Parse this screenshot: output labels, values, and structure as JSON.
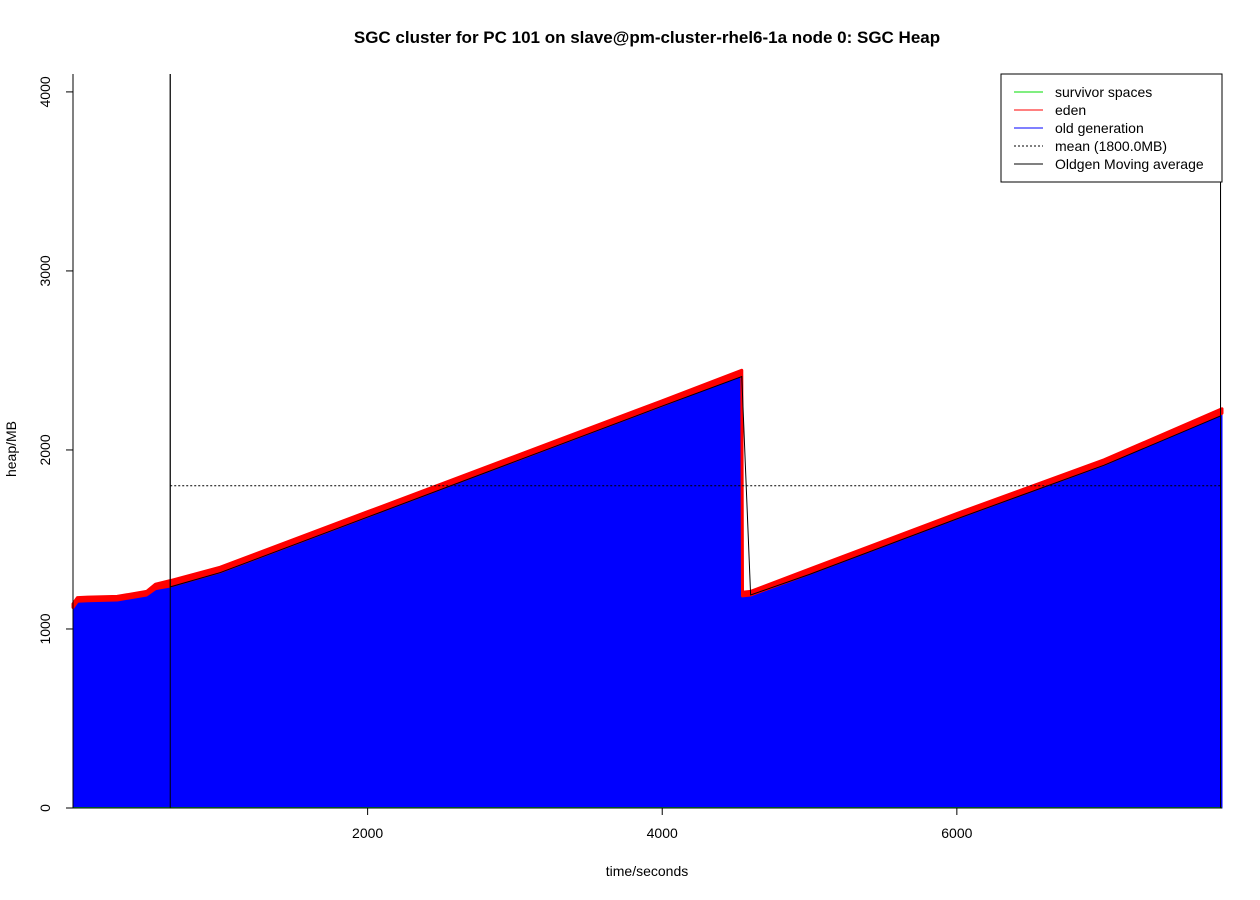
{
  "chart_data": {
    "type": "area",
    "title": "SGC cluster for PC 101 on slave@pm-cluster-rhel6-1a node 0: SGC Heap",
    "xlabel": "time/seconds",
    "ylabel": "heap/MB",
    "xlim": [
      0,
      7800
    ],
    "ylim": [
      0,
      4100
    ],
    "x_ticks": [
      2000,
      4000,
      6000
    ],
    "y_ticks": [
      0,
      1000,
      2000,
      3000,
      4000
    ],
    "legend_position": "top-right",
    "colors": {
      "survivor": "#00dd00",
      "eden": "#ff0000",
      "old": "#0000ff",
      "mean": "#000000",
      "moving_average": "#000000"
    },
    "legend": [
      {
        "key": "survivor",
        "label": "survivor spaces",
        "style": "solid"
      },
      {
        "key": "eden",
        "label": "eden",
        "style": "solid"
      },
      {
        "key": "old",
        "label": "old generation",
        "style": "solid"
      },
      {
        "key": "mean",
        "label": "mean (1800.0MB)",
        "style": "dotted"
      },
      {
        "key": "moving_average",
        "label": "Oldgen Moving average",
        "style": "solid"
      }
    ],
    "series": [
      {
        "name": "old generation",
        "x": [
          0,
          30,
          100,
          300,
          500,
          560,
          660,
          1000,
          2000,
          3000,
          4000,
          4540,
          4545,
          4600,
          5000,
          6000,
          7000,
          7800
        ],
        "values": [
          1120,
          1155,
          1158,
          1162,
          1190,
          1225,
          1240,
          1320,
          1630,
          1940,
          2250,
          2420,
          1185,
          1190,
          1310,
          1620,
          1920,
          2205
        ]
      },
      {
        "name": "eden",
        "x": [
          0,
          30,
          100,
          300,
          500,
          560,
          660,
          1000,
          2000,
          3000,
          4000,
          4540,
          4545,
          4600,
          5000,
          6000,
          7000,
          7800
        ],
        "values": [
          20,
          20,
          20,
          20,
          20,
          25,
          30,
          25,
          25,
          25,
          25,
          25,
          20,
          20,
          25,
          25,
          25,
          25
        ]
      },
      {
        "name": "survivor spaces",
        "x": [
          0,
          7800
        ],
        "values": [
          2,
          2
        ]
      },
      {
        "name": "Oldgen Moving average",
        "x": [
          660,
          660,
          1000,
          2000,
          3000,
          4000,
          4540,
          4600,
          5000,
          6000,
          7000,
          7790,
          7790
        ],
        "values": [
          0,
          1235,
          1315,
          1625,
          1935,
          2245,
          2410,
          1190,
          1305,
          1615,
          1915,
          2190,
          0
        ]
      }
    ],
    "mean": {
      "x_start": 660,
      "x_end": 7800,
      "value": 1800
    }
  }
}
